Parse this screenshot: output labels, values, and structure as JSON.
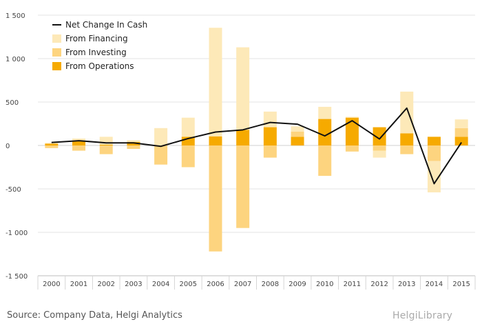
{
  "source_text": "Source: Company Data, Helgi Analytics",
  "logo_text": "HelgiLibrary",
  "chart_data": {
    "type": "bar",
    "categories": [
      "2000",
      "2001",
      "2002",
      "2003",
      "2004",
      "2005",
      "2006",
      "2007",
      "2008",
      "2009",
      "2010",
      "2011",
      "2012",
      "2013",
      "2014",
      "2015"
    ],
    "ylim": [
      -1500,
      1500
    ],
    "yticks": [
      1500,
      1000,
      500,
      0,
      -500,
      -1000,
      -1500
    ],
    "ytick_labels": [
      "1 500",
      "1 000",
      "500",
      "0",
      "-500",
      "-1 000",
      "-1 500"
    ],
    "grid": true,
    "legend_position": "top-left",
    "series": [
      {
        "name": "From Financing",
        "kind": "bar",
        "color": "#fde9b8",
        "values": [
          10,
          30,
          90,
          20,
          200,
          220,
          1250,
          950,
          180,
          60,
          140,
          10,
          -80,
          480,
          -360,
          100
        ]
      },
      {
        "name": "From Investing",
        "kind": "bar",
        "color": "#fdd47f",
        "values": [
          -30,
          -60,
          -100,
          -40,
          -220,
          -250,
          -1220,
          -950,
          -140,
          60,
          -350,
          -70,
          -60,
          -100,
          -180,
          100
        ]
      },
      {
        "name": "From Operations",
        "kind": "bar",
        "color": "#f6aa00",
        "values": [
          20,
          50,
          10,
          40,
          0,
          100,
          105,
          180,
          210,
          100,
          305,
          320,
          210,
          140,
          100,
          100
        ]
      },
      {
        "name": "Net Change In Cash",
        "kind": "line",
        "color": "#111111",
        "values": [
          35,
          55,
          30,
          30,
          -10,
          80,
          155,
          180,
          265,
          245,
          110,
          285,
          75,
          430,
          -440,
          35
        ]
      }
    ]
  }
}
